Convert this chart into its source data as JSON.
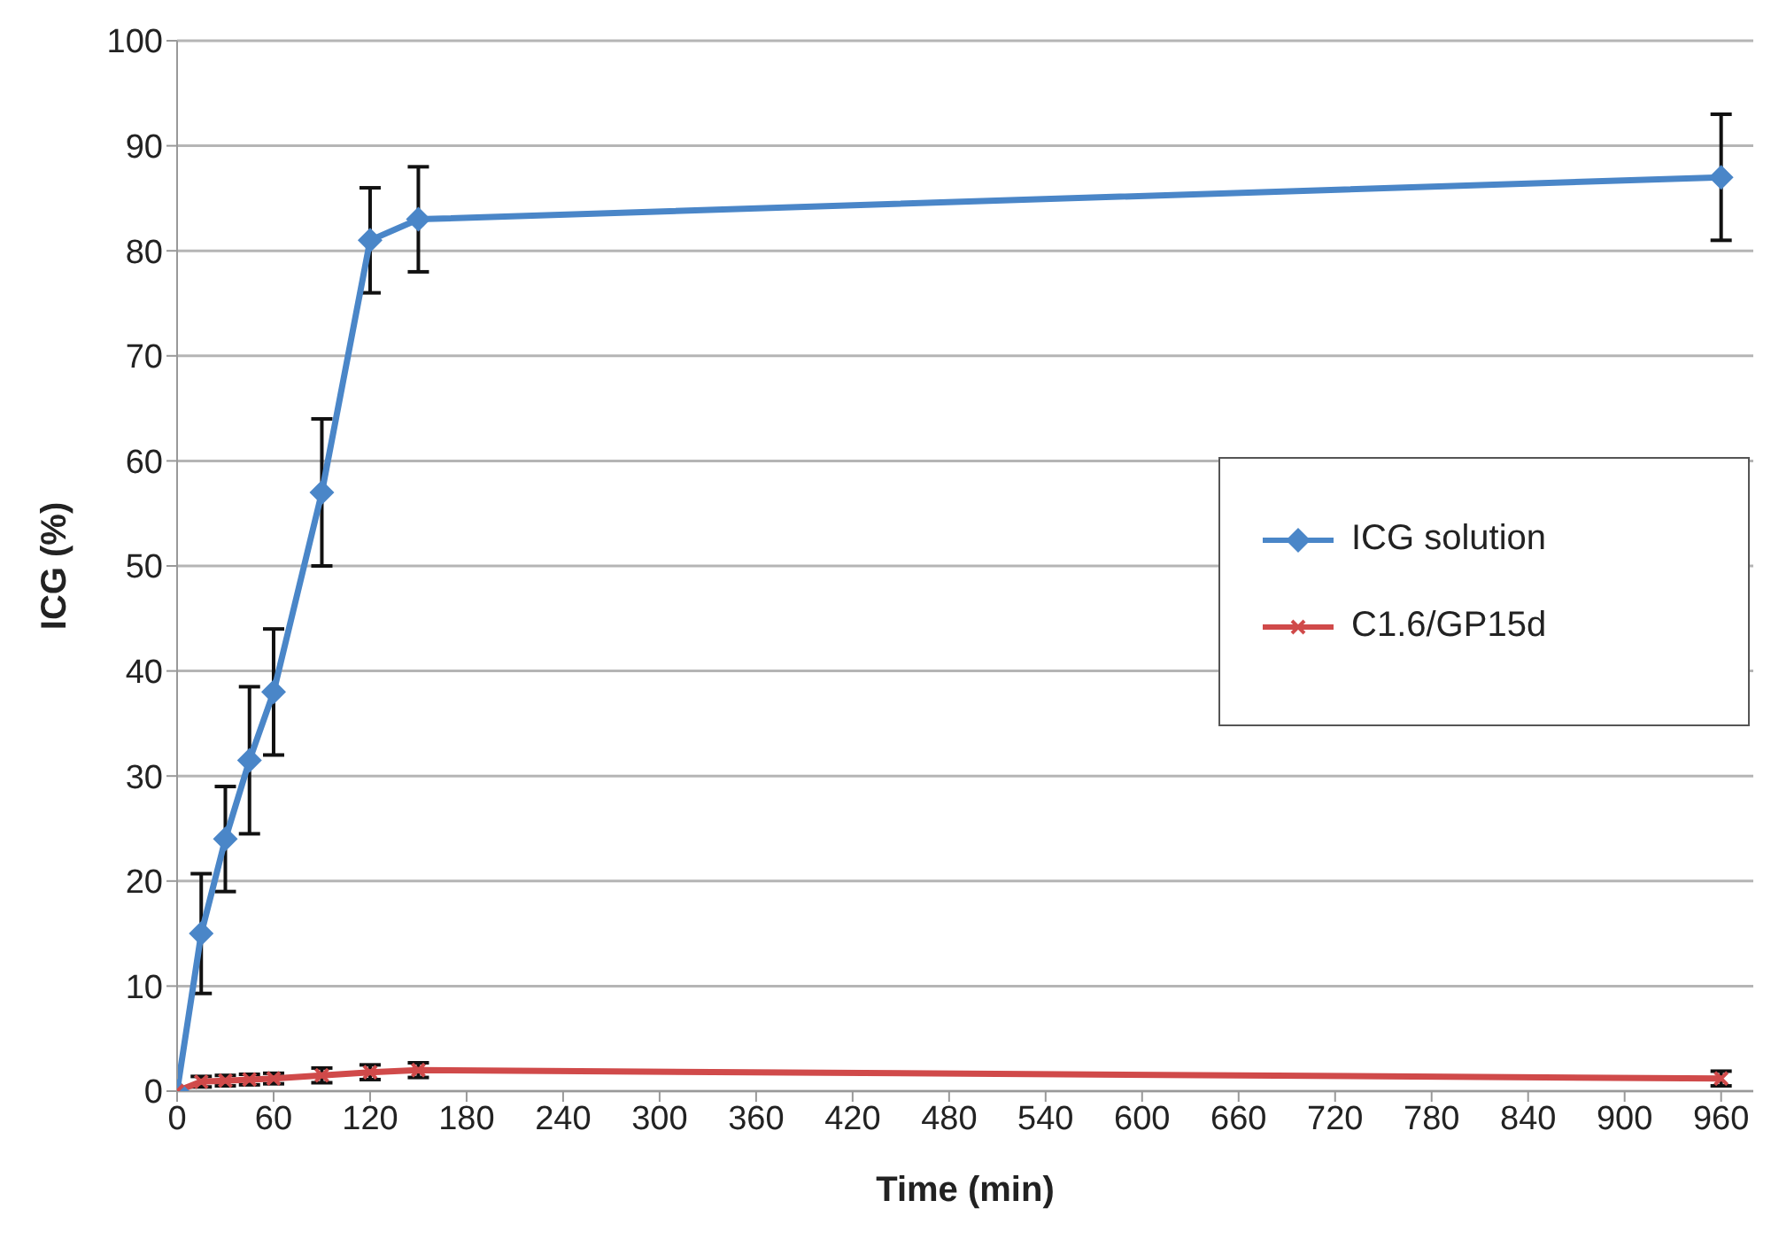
{
  "chart_data": {
    "type": "line",
    "xlabel": "Time (min)",
    "ylabel": "ICG (%)",
    "x": [
      0,
      15,
      30,
      45,
      60,
      90,
      120,
      150,
      960
    ],
    "series": [
      {
        "name": "ICG solution",
        "color": "#4a86c8",
        "marker": "diamond",
        "values": [
          0,
          15,
          24,
          31.5,
          38,
          57,
          81,
          83,
          87
        ],
        "errors": [
          null,
          5.7,
          5,
          7,
          6,
          7,
          5,
          5,
          6
        ]
      },
      {
        "name": "C1.6/GP15d",
        "color": "#d04a4a",
        "marker": "cross",
        "values": [
          0,
          0.9,
          1,
          1.1,
          1.2,
          1.5,
          1.8,
          2,
          1.2
        ],
        "errors": [
          null,
          0.5,
          0.5,
          0.5,
          0.5,
          0.7,
          0.7,
          0.7,
          0.7
        ]
      }
    ],
    "xlim": [
      0,
      980
    ],
    "xticks": [
      0,
      60,
      120,
      180,
      240,
      300,
      360,
      420,
      480,
      540,
      600,
      660,
      720,
      780,
      840,
      900,
      960
    ],
    "ylim": [
      0,
      100
    ],
    "yticks": [
      0,
      10,
      20,
      30,
      40,
      50,
      60,
      70,
      80,
      90,
      100
    ],
    "grid": "y",
    "legend": "right",
    "line_style": "solid"
  }
}
